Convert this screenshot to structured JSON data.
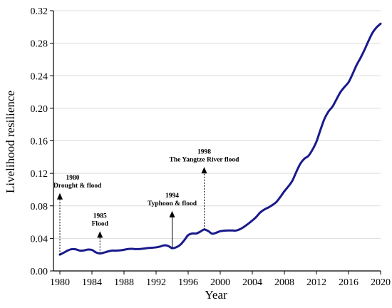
{
  "chart_data": {
    "type": "line",
    "title": "",
    "xlabel": "Year",
    "ylabel": "Livelihood resilience",
    "xlim": [
      1979.2,
      2020
    ],
    "ylim": [
      0,
      0.32
    ],
    "x_ticks": [
      "1980",
      "1984",
      "1988",
      "1992",
      "1996",
      "2000",
      "2004",
      "2008",
      "2012",
      "2016",
      "2020"
    ],
    "y_ticks": [
      "0.00",
      "0.04",
      "0.08",
      "0.12",
      "0.16",
      "0.20",
      "0.24",
      "0.28",
      "0.32"
    ],
    "grid": "horizontal",
    "legend": "none",
    "line_color": "#1a1a8c",
    "series": [
      {
        "x": [
          1980,
          1980.5,
          1981,
          1981.5,
          1982,
          1982.5,
          1983,
          1983.5,
          1984,
          1984.5,
          1985,
          1985.5,
          1986,
          1986.5,
          1987,
          1987.5,
          1988,
          1988.5,
          1989,
          1989.5,
          1990,
          1990.5,
          1991,
          1991.5,
          1992,
          1992.5,
          1993,
          1993.5,
          1994,
          1994.5,
          1995,
          1995.5,
          1996,
          1996.5,
          1997,
          1997.5,
          1998,
          1998.5,
          1999,
          1999.5,
          2000,
          2000.5,
          2001,
          2001.5,
          2002,
          2002.5,
          2003,
          2003.5,
          2004,
          2004.5,
          2005,
          2005.5,
          2006,
          2006.5,
          2007,
          2007.5,
          2008,
          2008.5,
          2009,
          2009.5,
          2010,
          2010.5,
          2011,
          2011.5,
          2012,
          2012.5,
          2013,
          2013.5,
          2014,
          2014.5,
          2015,
          2015.5,
          2016,
          2016.5,
          2017,
          2017.5,
          2018,
          2018.5,
          2019,
          2019.5,
          2020
        ],
        "values": [
          0.02,
          0.0225,
          0.0252,
          0.0268,
          0.0265,
          0.025,
          0.0252,
          0.0263,
          0.0258,
          0.0228,
          0.0215,
          0.0225,
          0.024,
          0.025,
          0.025,
          0.0253,
          0.026,
          0.027,
          0.0272,
          0.0268,
          0.027,
          0.0275,
          0.0282,
          0.0285,
          0.029,
          0.03,
          0.0315,
          0.0308,
          0.028,
          0.029,
          0.032,
          0.0375,
          0.044,
          0.046,
          0.046,
          0.0482,
          0.051,
          0.049,
          0.0458,
          0.047,
          0.0488,
          0.0495,
          0.0498,
          0.0497,
          0.0497,
          0.0515,
          0.0545,
          0.058,
          0.062,
          0.0665,
          0.072,
          0.0755,
          0.078,
          0.081,
          0.0848,
          0.091,
          0.098,
          0.104,
          0.111,
          0.122,
          0.132,
          0.138,
          0.1415,
          0.149,
          0.159,
          0.1735,
          0.187,
          0.196,
          0.202,
          0.211,
          0.22,
          0.2262,
          0.232,
          0.242,
          0.253,
          0.262,
          0.272,
          0.283,
          0.293,
          0.2995,
          0.304
        ]
      }
    ],
    "annotations": [
      {
        "year_label": "1980",
        "event": "Drought & flood",
        "x": 1980,
        "y_start": 0.02,
        "arrow_top": 0.094,
        "style": "dotted"
      },
      {
        "year_label": "1985",
        "event": "Flood",
        "x": 1985,
        "y_start": 0.0215,
        "arrow_top": 0.047,
        "style": "dotted"
      },
      {
        "year_label": "1994",
        "event": "Typhoon & flood",
        "x": 1994,
        "y_start": 0.028,
        "arrow_top": 0.072,
        "style": "solid"
      },
      {
        "year_label": "1998",
        "event": "The Yangtze River flood",
        "x": 1998,
        "y_start": 0.051,
        "arrow_top": 0.126,
        "style": "dotted"
      }
    ]
  }
}
